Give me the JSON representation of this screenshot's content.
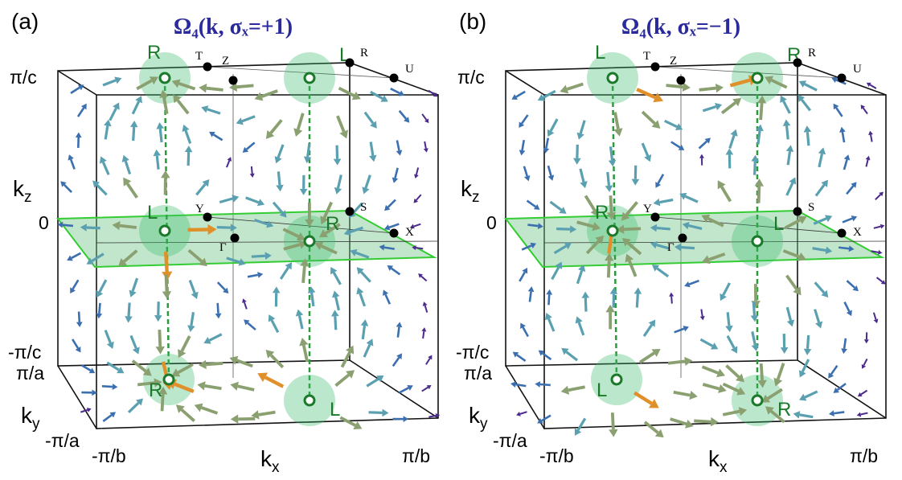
{
  "panels": [
    {
      "label": "(a)",
      "title": "Ω₄(k, σₓ=+1)",
      "axis_labels": [
        {
          "base": "k",
          "sub": "z"
        },
        {
          "base": "k",
          "sub": "y"
        },
        {
          "base": "k",
          "sub": "x"
        }
      ],
      "ticks": [
        "π/c",
        "0",
        "-π/c",
        "π/a",
        "-π/a",
        "-π/b",
        "π/b"
      ],
      "points": [
        "T",
        "Z",
        "R",
        "U",
        "Y",
        "S",
        "Γ",
        "X"
      ],
      "nodes": [
        "R",
        "L",
        "L",
        "R",
        "R",
        "L"
      ]
    },
    {
      "label": "(b)",
      "title": "Ω₄(k, σₓ=−1)",
      "axis_labels": [
        {
          "base": "k",
          "sub": "z"
        },
        {
          "base": "k",
          "sub": "y"
        },
        {
          "base": "k",
          "sub": "x"
        }
      ],
      "ticks": [
        "π/c",
        "0",
        "-π/c",
        "π/a",
        "-π/a",
        "-π/b",
        "π/b"
      ],
      "points": [
        "T",
        "Z",
        "R",
        "U",
        "Y",
        "S",
        "Γ",
        "X"
      ],
      "nodes": [
        "L",
        "R",
        "R",
        "L",
        "L",
        "R"
      ]
    }
  ]
}
